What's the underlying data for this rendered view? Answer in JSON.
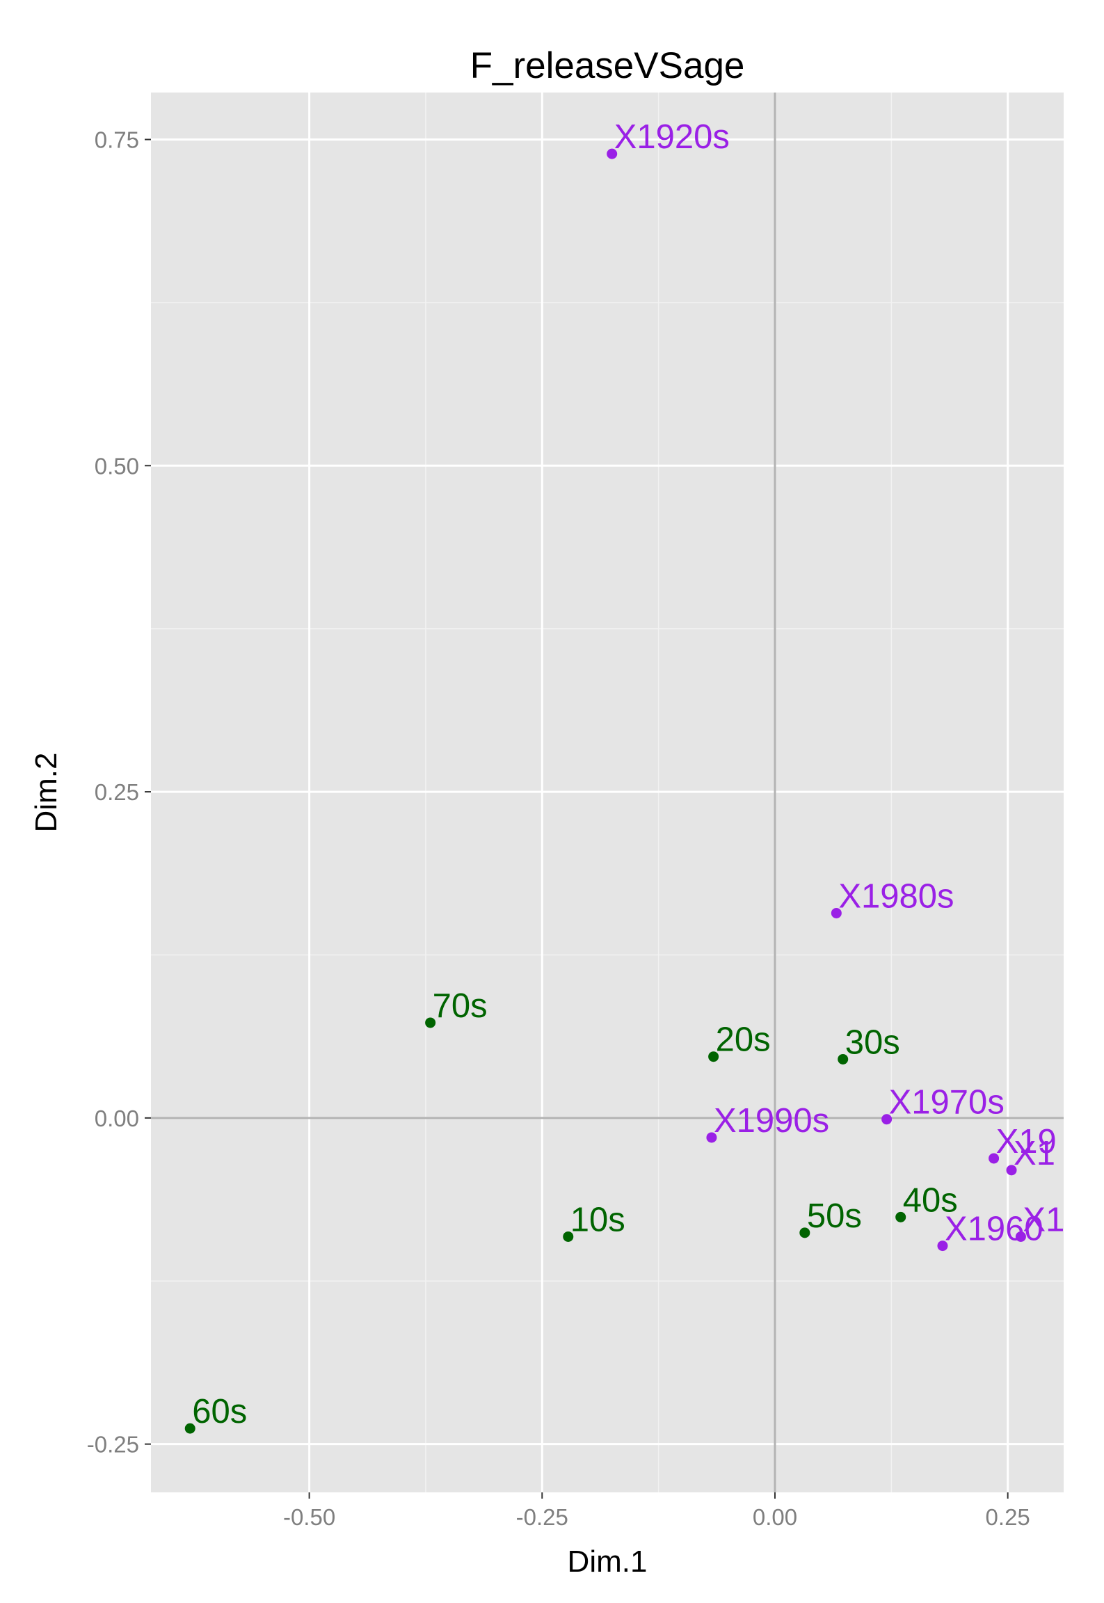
{
  "chart_data": {
    "type": "scatter",
    "title": "F_releaseVSage",
    "xlabel": "Dim.1",
    "ylabel": "Dim.2",
    "xlim": [
      -0.67,
      0.31
    ],
    "ylim": [
      -0.287,
      0.786
    ],
    "x_ticks": [
      -0.5,
      -0.25,
      0,
      0.25
    ],
    "x_tick_labels": [
      "-0.50",
      "-0.25",
      "0.00",
      "0.25"
    ],
    "y_ticks": [
      -0.25,
      0,
      0.25,
      0.5,
      0.75
    ],
    "y_tick_labels": [
      "-0.25",
      "0.00",
      "0.25",
      "0.50",
      "0.75"
    ],
    "grid": true,
    "reference_lines": {
      "x": 0,
      "y": 0
    },
    "background_color": "#e5e5e5",
    "grid_color": "#ffffff",
    "reference_line_color": "#b3b3b3",
    "series": [
      {
        "color": "#9a20e6",
        "points": [
          {
            "label": "X1920s",
            "x": -0.175,
            "y": 0.739
          },
          {
            "label": "X1980s",
            "x": 0.066,
            "y": 0.157
          },
          {
            "label": "X1970s",
            "x": 0.12,
            "y": -0.001
          },
          {
            "label": "X1990s",
            "x": -0.068,
            "y": -0.015
          },
          {
            "label": "X19",
            "x": 0.235,
            "y": -0.031
          },
          {
            "label": "X1",
            "x": 0.254,
            "y": -0.04
          },
          {
            "label": "X1960",
            "x": 0.18,
            "y": -0.098
          },
          {
            "label": "X1",
            "x": 0.264,
            "y": -0.091
          }
        ]
      },
      {
        "color": "#006400",
        "points": [
          {
            "label": "70s",
            "x": -0.37,
            "y": 0.073
          },
          {
            "label": "20s",
            "x": -0.066,
            "y": 0.047
          },
          {
            "label": "30s",
            "x": 0.073,
            "y": 0.045
          },
          {
            "label": "10s",
            "x": -0.222,
            "y": -0.091
          },
          {
            "label": "50s",
            "x": 0.032,
            "y": -0.088
          },
          {
            "label": "40s",
            "x": 0.135,
            "y": -0.076
          },
          {
            "label": "60s",
            "x": -0.628,
            "y": -0.238
          }
        ]
      }
    ]
  }
}
